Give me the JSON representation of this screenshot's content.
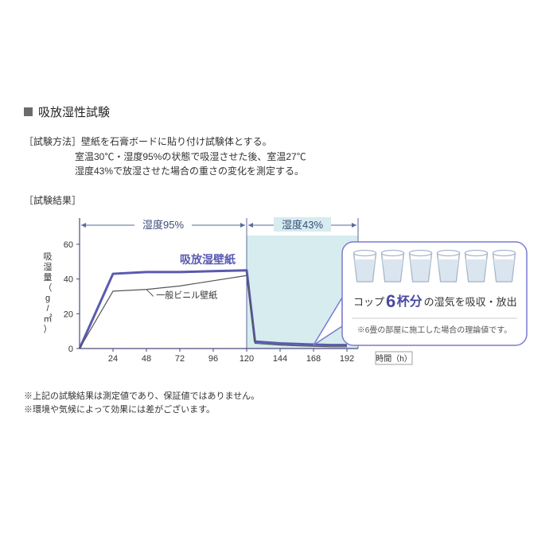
{
  "title": "吸放湿性試験",
  "method": {
    "label": "［試験方法］",
    "line1": "壁紙を石膏ボードに貼り付け試験体とする。",
    "line2": "室温30℃・湿度95%の状態で吸湿させた後、室温27℃",
    "line3": "湿度43%で放湿させた場合の重さの変化を測定する。"
  },
  "result_label": "［試験結果］",
  "chart": {
    "type": "line",
    "ylabel": "吸湿量（g/㎡）",
    "xlabel": "時間（h）",
    "x_ticks": [
      24,
      48,
      72,
      96,
      120,
      144,
      168,
      192
    ],
    "y_ticks": [
      0,
      20,
      40,
      60
    ],
    "xlim": [
      0,
      200
    ],
    "ylim": [
      0,
      65
    ],
    "region1": {
      "label": "湿度95%",
      "xstart": 0,
      "xend": 120,
      "fill": "none"
    },
    "region2": {
      "label": "湿度43%",
      "xstart": 120,
      "xend": 200,
      "fill": "#d6ecef"
    },
    "series": [
      {
        "name": "吸放湿壁紙",
        "color": "#5a5ab0",
        "width": 3,
        "points": [
          [
            0,
            0
          ],
          [
            24,
            43
          ],
          [
            48,
            44
          ],
          [
            72,
            44
          ],
          [
            96,
            44.5
          ],
          [
            120,
            45
          ],
          [
            126,
            4
          ],
          [
            144,
            3
          ],
          [
            160,
            2.5
          ],
          [
            180,
            2
          ],
          [
            192,
            2
          ]
        ]
      },
      {
        "name": "一般ビニル壁紙",
        "color": "#555555",
        "width": 1.2,
        "points": [
          [
            0,
            0
          ],
          [
            24,
            33
          ],
          [
            48,
            34
          ],
          [
            72,
            36
          ],
          [
            96,
            39
          ],
          [
            120,
            42
          ],
          [
            126,
            3
          ],
          [
            144,
            2
          ],
          [
            160,
            1.5
          ],
          [
            180,
            1
          ],
          [
            192,
            1
          ]
        ]
      }
    ],
    "axis_color": "#4a4a7a",
    "tick_font_size": 11
  },
  "callout": {
    "text_before": "コップ",
    "big_num": "6",
    "big_unit": "杯分",
    "text_after": "の湿気を吸収・放出",
    "footnote": "※6畳の部屋に施工した場合の理論値です。",
    "cup_count": 6,
    "cup_color": "#a9b8cc",
    "border_color": "#7a7ad0",
    "text_color": "#4a4aa0",
    "font_size_main": 13,
    "font_size_big": 22,
    "font_size_foot": 10
  },
  "footnotes": {
    "line1": "※上記の試験結果は測定値であり、保証値ではありません。",
    "line2": "※環境や気候によって効果には差がございます。"
  }
}
